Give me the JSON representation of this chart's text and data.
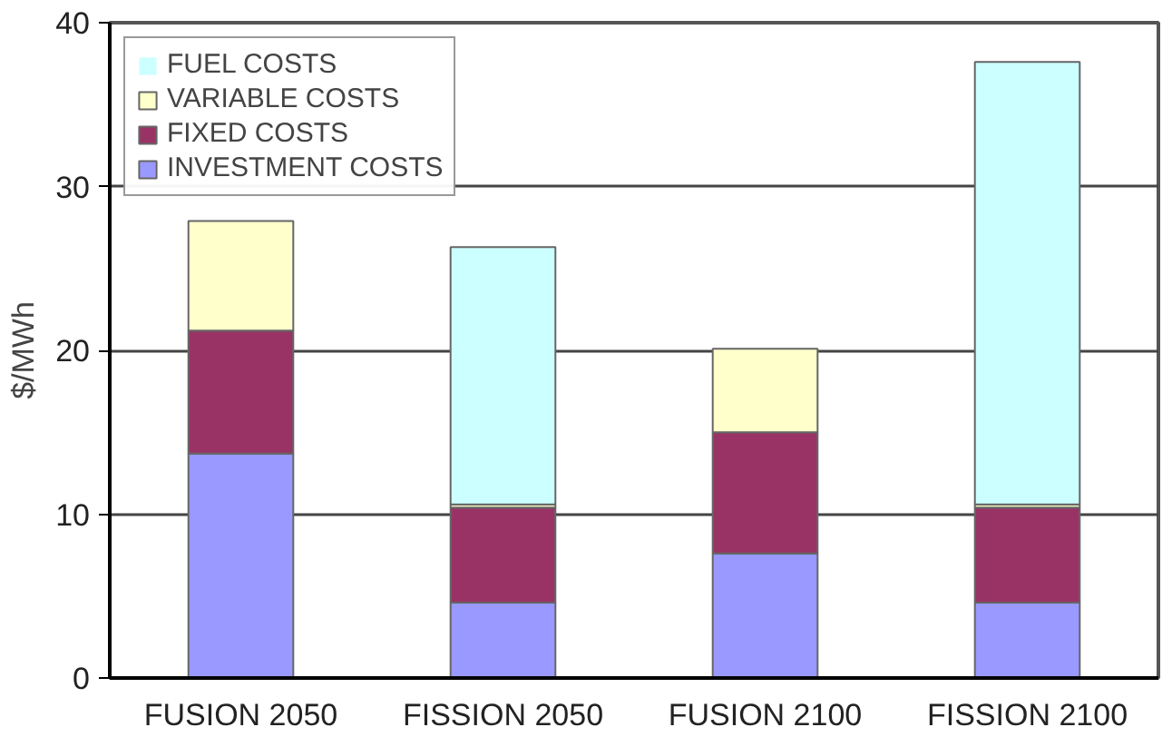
{
  "chart_data": {
    "type": "bar",
    "stacked": true,
    "ylabel": "$/MWh",
    "categories": [
      "FUSION 2050",
      "FISSION 2050",
      "FUSION 2100",
      "FISSION 2100"
    ],
    "series": [
      {
        "name": "INVESTMENT COSTS",
        "color": "#9999ff",
        "values": [
          13.7,
          4.6,
          7.6,
          4.6
        ]
      },
      {
        "name": "FIXED COSTS",
        "color": "#993366",
        "values": [
          7.5,
          5.8,
          7.4,
          5.8
        ]
      },
      {
        "name": "VARIABLE COSTS",
        "color": "#ffffcc",
        "values": [
          6.7,
          0.2,
          5.1,
          0.2
        ]
      },
      {
        "name": "FUEL COSTS",
        "color": "#ccffff",
        "values": [
          0,
          15.7,
          0,
          27.0
        ]
      }
    ],
    "ylim": [
      0,
      40
    ],
    "yticks": [
      0,
      10,
      20,
      30,
      40
    ],
    "grid": "y",
    "legend": "top left"
  }
}
